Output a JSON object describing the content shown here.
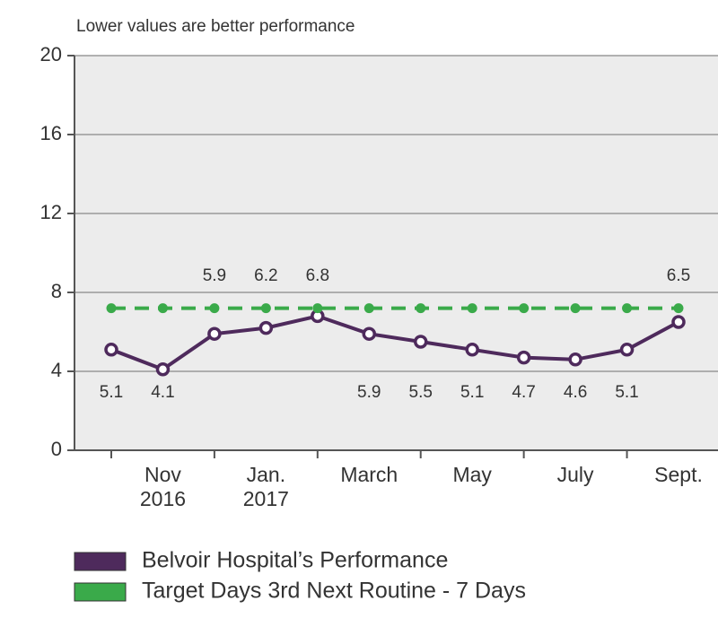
{
  "chart_data": {
    "type": "line",
    "subtitle": "Lower values are better performance",
    "categories": [
      null,
      "Nov 2016",
      null,
      "Jan. 2017",
      null,
      "March",
      null,
      "May",
      null,
      "July",
      null,
      "Sept."
    ],
    "series": [
      {
        "name": "Belvoir Hospital’s Performance",
        "color": "#4e2a5c",
        "values": [
          5.1,
          4.1,
          5.9,
          6.2,
          6.8,
          5.9,
          5.5,
          5.1,
          4.7,
          4.6,
          5.1,
          6.5
        ]
      },
      {
        "name": "Target Days 3rd Next Routine - 7 Days",
        "color": "#3aaa4a",
        "dashed": true,
        "values": [
          7.2,
          7.2,
          7.2,
          7.2,
          7.2,
          7.2,
          7.2,
          7.2,
          7.2,
          7.2,
          7.2,
          7.2
        ]
      }
    ],
    "data_labels_series": 0,
    "ylim": [
      0,
      20
    ],
    "yticks": [
      0,
      4,
      8,
      12,
      16,
      20
    ],
    "grid": true,
    "legend": "bottom"
  }
}
